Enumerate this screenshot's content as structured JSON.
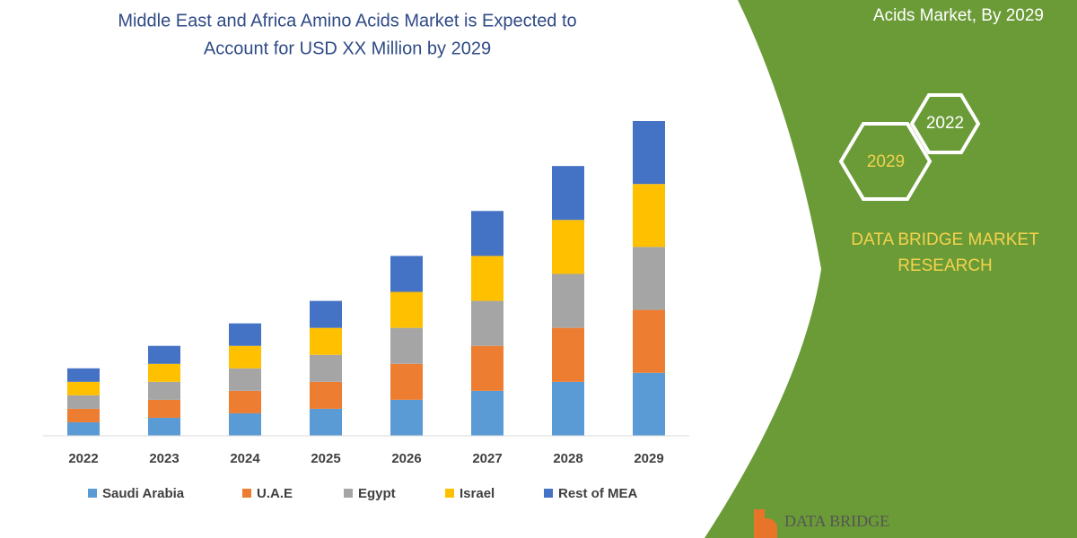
{
  "chart_data": {
    "type": "stacked-bar",
    "title": [
      "Middle East and Africa Amino Acids Market is Expected to",
      "Account for USD XX Million by 2029"
    ],
    "categories": [
      "2022",
      "2023",
      "2024",
      "2025",
      "2026",
      "2027",
      "2028",
      "2029"
    ],
    "series": [
      {
        "name": "Saudi Arabia",
        "color": "#5b9bd5",
        "values": [
          1.5,
          2,
          2.5,
          3,
          4,
          5,
          6,
          7
        ]
      },
      {
        "name": "U.A.E",
        "color": "#ed7d31",
        "values": [
          1.5,
          2,
          2.5,
          3,
          4,
          5,
          6,
          7
        ]
      },
      {
        "name": "Egypt",
        "color": "#a5a5a5",
        "values": [
          1.5,
          2,
          2.5,
          3,
          4,
          5,
          6,
          7
        ]
      },
      {
        "name": "Israel",
        "color": "#ffc000",
        "values": [
          1.5,
          2,
          2.5,
          3,
          4,
          5,
          6,
          7
        ]
      },
      {
        "name": "Rest of MEA",
        "color": "#4472c4",
        "values": [
          1.5,
          2,
          2.5,
          3,
          4,
          5,
          6,
          7
        ]
      }
    ],
    "legend": "bottom"
  },
  "panel": {
    "heading": "Acids Market, By 2029",
    "hexagons": [
      "2022",
      "2029"
    ],
    "brand": [
      "DATA BRIDGE MARKET",
      "RESEARCH"
    ],
    "logo": "DATA BRIDGE"
  }
}
